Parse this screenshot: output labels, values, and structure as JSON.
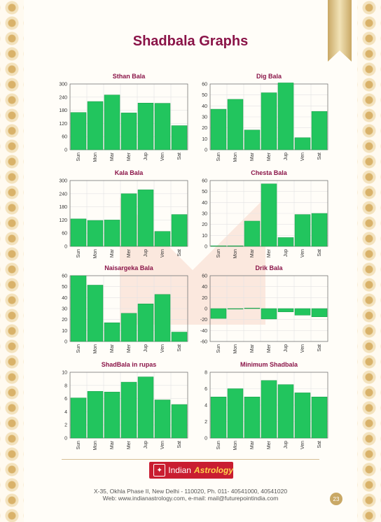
{
  "page": {
    "title": "Shadbala Graphs",
    "logo_text": "Indian",
    "logo_accent": "Astrology",
    "address": "X-35, Okhla Phase II, New Delhi - 110020, Ph. 011- 40541000, 40541020",
    "web": "Web: www.indianastrology.com, e-mail: mail@futurepointindia.com",
    "page_number": "23"
  },
  "colors": {
    "bar": "#22c55e",
    "title": "#8a1448",
    "accent": "#c91d31",
    "gold": "#c9a865"
  },
  "chart_data": [
    {
      "type": "bar",
      "title": "Sthan Bala",
      "categories": [
        "Sun",
        "Mon",
        "Mar",
        "Mer",
        "Jup",
        "Ven",
        "Sat"
      ],
      "values": [
        170,
        220,
        250,
        168,
        213,
        212,
        110
      ],
      "ylim": [
        0,
        300
      ],
      "yticks": [
        0,
        60,
        120,
        180,
        240,
        300
      ],
      "grid": true
    },
    {
      "type": "bar",
      "title": "Dig Bala",
      "categories": [
        "Sun",
        "Mon",
        "Mar",
        "Mer",
        "Jup",
        "Ven",
        "Sat"
      ],
      "values": [
        37,
        46,
        18,
        52,
        61,
        11,
        35
      ],
      "ylim": [
        0,
        60
      ],
      "yticks": [
        0,
        10,
        20,
        30,
        40,
        50,
        60
      ],
      "grid": true
    },
    {
      "type": "bar",
      "title": "Kala Bala",
      "categories": [
        "Sun",
        "Mon",
        "Mar",
        "Mer",
        "Jup",
        "Ven",
        "Sat"
      ],
      "values": [
        125,
        118,
        120,
        240,
        258,
        68,
        145
      ],
      "ylim": [
        0,
        300
      ],
      "yticks": [
        0,
        60,
        120,
        180,
        240,
        300
      ],
      "grid": true
    },
    {
      "type": "bar",
      "title": "Chesta Bala",
      "categories": [
        "Sun",
        "Mon",
        "Mar",
        "Mer",
        "Jup",
        "Ven",
        "Sat"
      ],
      "values": [
        0.5,
        0.5,
        23,
        57,
        8,
        29,
        30
      ],
      "ylim": [
        0,
        60
      ],
      "yticks": [
        0,
        10,
        20,
        30,
        40,
        50,
        60
      ],
      "grid": true
    },
    {
      "type": "bar",
      "title": "Naisargeka Bala",
      "categories": [
        "Sun",
        "Mon",
        "Mar",
        "Mer",
        "Jup",
        "Ven",
        "Sat"
      ],
      "values": [
        60,
        51.4,
        17.1,
        25.7,
        34.3,
        42.9,
        8.6
      ],
      "ylim": [
        0,
        60
      ],
      "yticks": [
        0,
        10,
        20,
        30,
        40,
        50,
        60
      ],
      "grid": true
    },
    {
      "type": "bar",
      "title": "Drik Bala",
      "categories": [
        "Sun",
        "Mon",
        "Mar",
        "Mer",
        "Jup",
        "Ven",
        "Sat"
      ],
      "values": [
        -18,
        -1,
        1,
        -19,
        -6,
        -12,
        -15
      ],
      "ylim": [
        -60,
        60
      ],
      "yticks": [
        -60,
        -40,
        -20,
        0,
        20,
        40,
        60
      ],
      "grid": true
    },
    {
      "type": "bar",
      "title": "ShadBala in rupas",
      "categories": [
        "Sun",
        "Mon",
        "Mar",
        "Mer",
        "Jup",
        "Ven",
        "Sat"
      ],
      "values": [
        6.1,
        7.1,
        7,
        8.5,
        9.3,
        5.8,
        5.1
      ],
      "ylim": [
        0,
        10
      ],
      "yticks": [
        0,
        2,
        4,
        6,
        8,
        10
      ],
      "grid": true
    },
    {
      "type": "bar",
      "title": "Minimum Shadbala",
      "categories": [
        "Sun",
        "Mon",
        "Mar",
        "Mer",
        "Jup",
        "Ven",
        "Sat"
      ],
      "values": [
        5,
        6,
        5,
        7,
        6.5,
        5.5,
        5
      ],
      "ylim": [
        0,
        8
      ],
      "yticks": [
        0,
        2,
        4,
        6,
        8
      ],
      "grid": true
    }
  ]
}
